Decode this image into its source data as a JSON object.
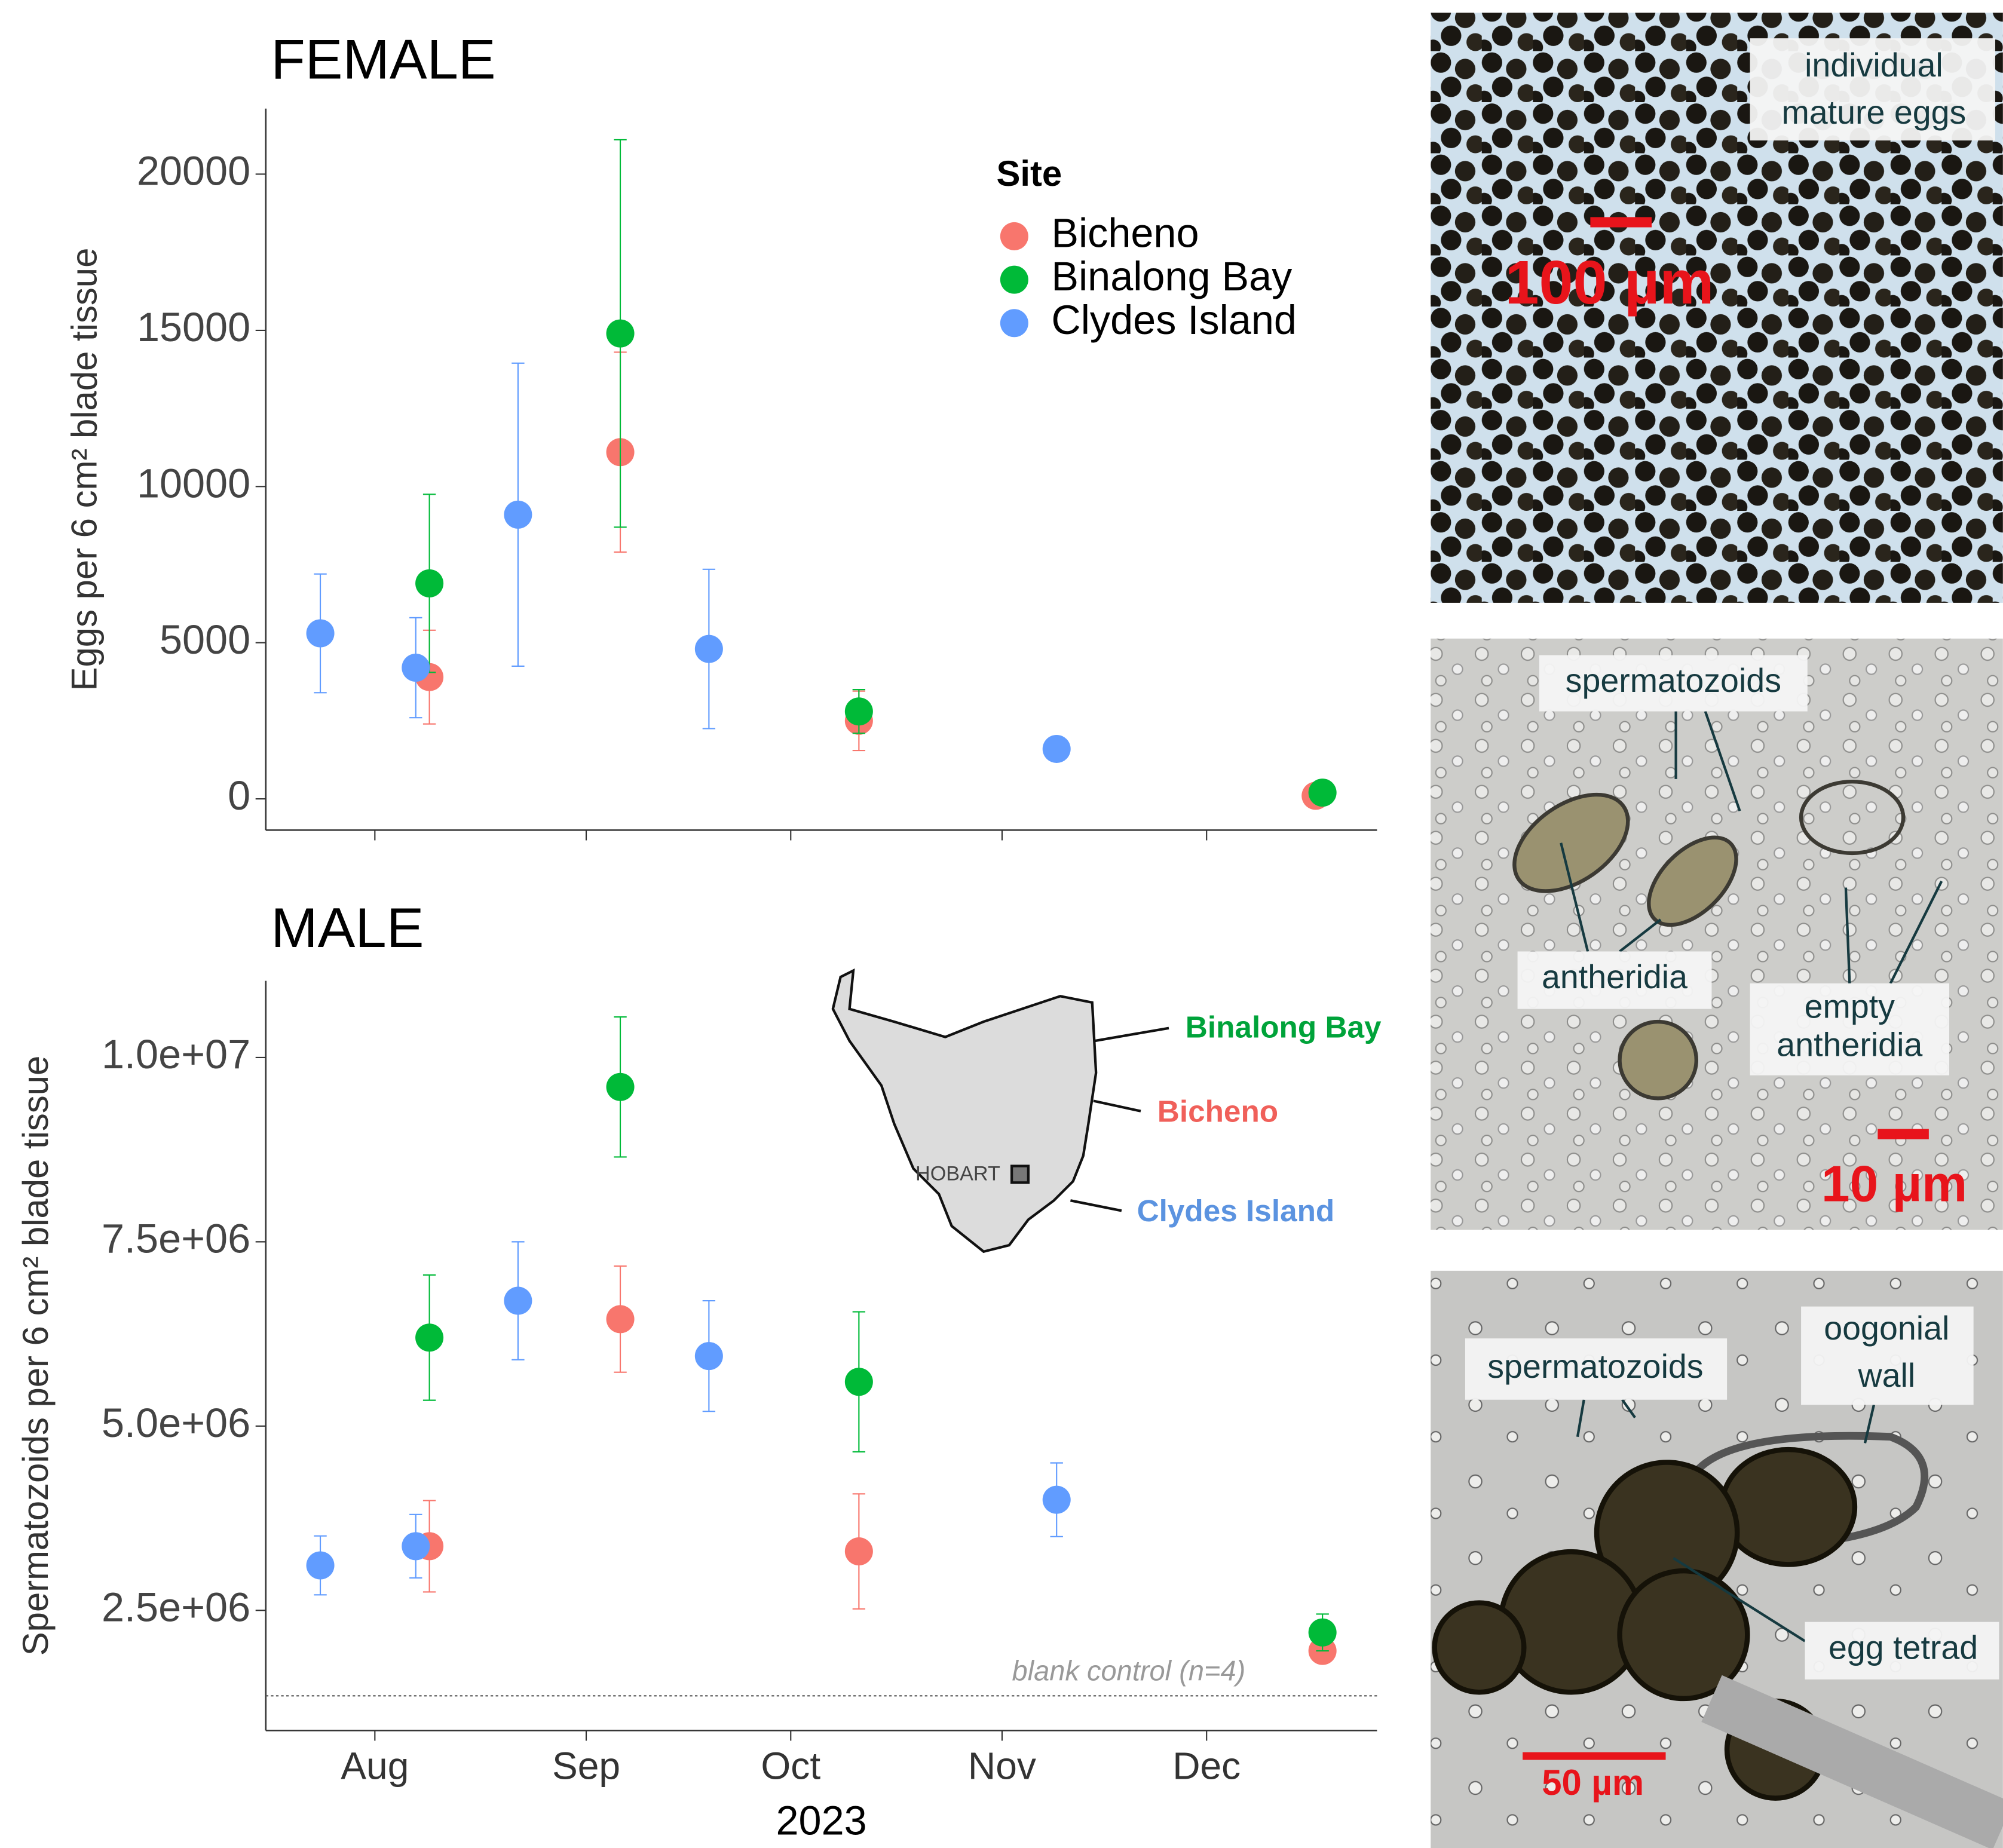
{
  "chart_data": [
    {
      "type": "scatter",
      "title": "FEMALE",
      "y_label": "Eggs per 6 cm² blade tissue",
      "legend_title": "Site",
      "legend": "top-right",
      "xlim": [
        197,
        360
      ],
      "ylim": [
        -1000,
        22100
      ],
      "yticks": [
        0,
        5000,
        10000,
        15000,
        20000
      ],
      "series": [
        {
          "name": "Bicheno",
          "color": "#F8766D",
          "x": [
            221,
            249,
            284,
            351
          ],
          "values": [
            3900,
            11100,
            2500,
            100
          ],
          "errors": [
            1500,
            3200,
            950,
            100
          ]
        },
        {
          "name": "Binalong Bay",
          "color": "#00BA38",
          "x": [
            221,
            249,
            284,
            352
          ],
          "values": [
            6900,
            14900,
            2800,
            200
          ],
          "errors": [
            2850,
            6200,
            700,
            200
          ]
        },
        {
          "name": "Clydes Island",
          "color": "#619CFF",
          "x": [
            205,
            219,
            234,
            262,
            313
          ],
          "values": [
            5300,
            4200,
            9100,
            4800,
            1600
          ],
          "errors": [
            1900,
            1600,
            4850,
            2550,
            200
          ]
        }
      ]
    },
    {
      "type": "scatter",
      "title": "MALE",
      "x_label": "2023",
      "y_label": "Spermatozoids per 6 cm² blade tissue",
      "xlim": [
        197,
        360
      ],
      "xticks": [
        {
          "value": 213,
          "label": "Aug"
        },
        {
          "value": 244,
          "label": "Sep"
        },
        {
          "value": 274,
          "label": "Oct"
        },
        {
          "value": 305,
          "label": "Nov"
        },
        {
          "value": 335,
          "label": "Dec"
        }
      ],
      "ylim": [
        870000,
        11040000
      ],
      "yticks": [
        {
          "value": 2500000,
          "label": "2.5e+06"
        },
        {
          "value": 5000000,
          "label": "5.0e+06"
        },
        {
          "value": 7500000,
          "label": "7.5e+06"
        },
        {
          "value": 10000000,
          "label": "1.0e+07"
        }
      ],
      "hline": 1340000,
      "hline_label": "blank control (n=4)",
      "series": [
        {
          "color": "#F8766D",
          "x": [
            221,
            249,
            284,
            352
          ],
          "values": [
            3370000,
            6450000,
            3300000,
            1950000
          ],
          "errors": [
            620000,
            720000,
            780000,
            150000
          ]
        },
        {
          "color": "#00BA38",
          "x": [
            221,
            249,
            284,
            352
          ],
          "values": [
            6200000,
            9600000,
            5600000,
            2200000
          ],
          "errors": [
            850000,
            950000,
            950000,
            250000
          ]
        },
        {
          "color": "#619CFF",
          "x": [
            205,
            219,
            234,
            262,
            313
          ],
          "values": [
            3110000,
            3370000,
            6700000,
            5950000,
            4000000
          ],
          "errors": [
            400000,
            430000,
            800000,
            750000,
            500000
          ]
        }
      ]
    }
  ],
  "map": {
    "labels": [
      "Binalong Bay",
      "Bicheno",
      "Clydes Island"
    ],
    "city": "HOBART"
  },
  "micrographs": [
    {
      "labels": [
        [
          "individual",
          "mature eggs"
        ]
      ],
      "scale_bar": "100 µm"
    },
    {
      "labels": [
        [
          "spermatozoids"
        ],
        [
          "antheridia"
        ],
        [
          "empty",
          "antheridia"
        ]
      ],
      "scale_bar": "10 µm"
    },
    {
      "labels": [
        [
          "spermatozoids"
        ],
        [
          "oogonial",
          "wall"
        ],
        [
          "egg tetrad"
        ]
      ],
      "scale_bar": "50 µm"
    }
  ]
}
